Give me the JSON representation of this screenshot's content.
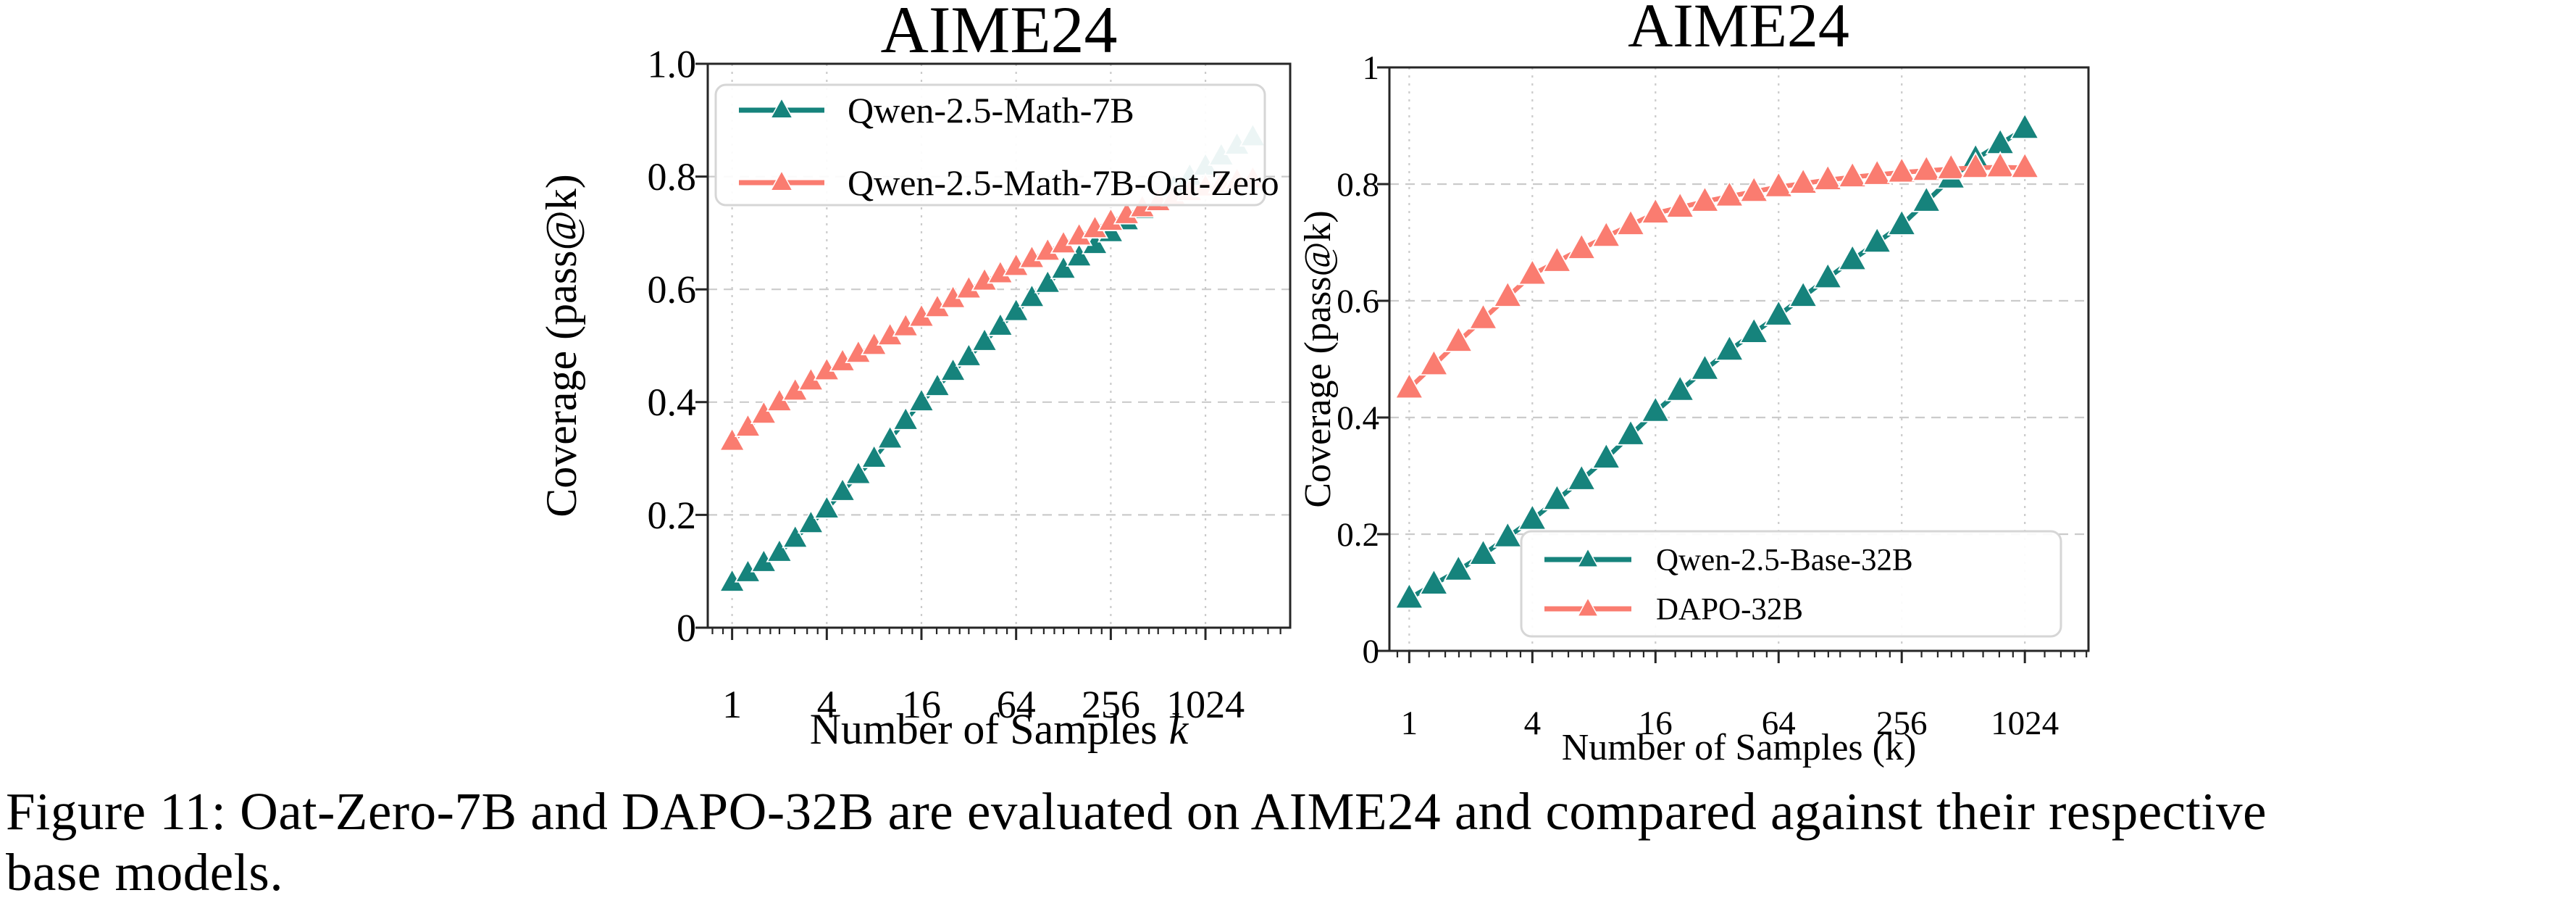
{
  "figure": {
    "caption_line1": "Figure 11: Oat-Zero-7B and DAPO-32B are evaluated on AIME24 and compared against their respective",
    "caption_line2": "base models."
  },
  "colors": {
    "teal": "#16837C",
    "coral": "#FA7C70",
    "grid": "#CBCBCB",
    "axis": "#262626",
    "legend_border": "#D6D6D6",
    "text": "#000000"
  },
  "chart_data": [
    {
      "type": "line",
      "title": "AIME24",
      "xlabel": "Number of Samples",
      "xlabel_suffix": "k",
      "xlabel_suffix_italic": true,
      "ylabel": "Coverage (pass@k)",
      "xscale": "log",
      "grid": true,
      "legend_position": "upper-left",
      "xlim": [
        0.7,
        3540
      ],
      "ylim": [
        0,
        1
      ],
      "xticks": [
        1,
        4,
        16,
        64,
        256,
        1024
      ],
      "xtick_labels": [
        "1",
        "4",
        "16",
        "64",
        "256",
        "1024"
      ],
      "yticks": [
        0,
        0.2,
        0.4,
        0.6,
        0.8,
        1.0
      ],
      "ytick_labels": [
        "0",
        "0.2",
        "0.4",
        "0.6",
        "0.8",
        "1.0"
      ],
      "series": [
        {
          "name": "Qwen-2.5-Math-7B",
          "color_key": "teal",
          "marker": "triangle-up",
          "k": [
            1,
            1.26,
            1.59,
            2,
            2.52,
            3.17,
            4,
            5.04,
            6.35,
            8,
            10.1,
            12.7,
            16,
            20.2,
            25.4,
            32,
            40.3,
            50.8,
            64,
            80.6,
            101.6,
            128,
            161,
            203,
            256,
            323,
            406,
            512,
            645,
            813,
            1024,
            1290,
            1625,
            2048
          ],
          "pass_at_k": [
            0.08,
            0.097,
            0.115,
            0.133,
            0.158,
            0.184,
            0.21,
            0.241,
            0.271,
            0.3,
            0.334,
            0.367,
            0.4,
            0.427,
            0.454,
            0.48,
            0.507,
            0.534,
            0.56,
            0.585,
            0.61,
            0.635,
            0.657,
            0.679,
            0.7,
            0.721,
            0.741,
            0.76,
            0.78,
            0.8,
            0.818,
            0.836,
            0.855,
            0.87
          ]
        },
        {
          "name": "Qwen-2.5-Math-7B-Oat-Zero",
          "color_key": "coral",
          "marker": "triangle-up",
          "k": [
            1,
            1.26,
            1.59,
            2,
            2.52,
            3.17,
            4,
            5.04,
            6.35,
            8,
            10.1,
            12.7,
            16,
            20.2,
            25.4,
            32,
            40.3,
            50.8,
            64,
            80.6,
            101.6,
            128,
            161,
            203,
            256,
            323,
            406,
            512,
            645,
            813,
            1024,
            1290,
            1625,
            2048
          ],
          "pass_at_k": [
            0.33,
            0.355,
            0.378,
            0.4,
            0.419,
            0.437,
            0.455,
            0.471,
            0.486,
            0.5,
            0.517,
            0.533,
            0.55,
            0.567,
            0.583,
            0.6,
            0.614,
            0.627,
            0.64,
            0.654,
            0.667,
            0.68,
            0.694,
            0.707,
            0.72,
            0.732,
            0.744,
            0.755,
            0.764,
            0.773,
            0.781,
            0.787,
            0.792,
            0.795
          ]
        }
      ]
    },
    {
      "type": "line",
      "title": "AIME24",
      "xlabel": "Number of Samples (k)",
      "xlabel_suffix": "",
      "xlabel_suffix_italic": false,
      "ylabel": "Coverage (pass@k)",
      "xscale": "log",
      "grid": true,
      "legend_position": "lower-right",
      "xlim": [
        0.8,
        2096
      ],
      "ylim": [
        0,
        1
      ],
      "xticks": [
        1,
        4,
        16,
        64,
        256,
        1024
      ],
      "xtick_labels": [
        "1",
        "4",
        "16",
        "64",
        "256",
        "1024"
      ],
      "yticks": [
        0,
        0.2,
        0.4,
        0.6,
        0.8,
        1.0
      ],
      "ytick_labels": [
        "0",
        "0.2",
        "0.4",
        "0.6",
        "0.8",
        "1"
      ],
      "series": [
        {
          "name": "Qwen-2.5-Base-32B",
          "color_key": "teal",
          "marker": "triangle-up",
          "k": [
            1,
            1.32,
            1.74,
            2.3,
            3.03,
            4,
            5.28,
            6.96,
            9.19,
            12.1,
            16,
            21.1,
            27.9,
            36.8,
            48.5,
            64,
            84.4,
            111.4,
            147,
            194,
            256,
            338,
            446,
            588,
            776,
            1024
          ],
          "pass_at_k": [
            0.09,
            0.114,
            0.138,
            0.165,
            0.195,
            0.225,
            0.259,
            0.293,
            0.33,
            0.37,
            0.41,
            0.446,
            0.482,
            0.515,
            0.545,
            0.575,
            0.607,
            0.639,
            0.67,
            0.7,
            0.73,
            0.77,
            0.81,
            0.843,
            0.869,
            0.895
          ]
        },
        {
          "name": "DAPO-32B",
          "color_key": "coral",
          "marker": "triangle-up",
          "k": [
            1,
            1.32,
            1.74,
            2.3,
            3.03,
            4,
            5.28,
            6.96,
            9.19,
            12.1,
            16,
            21.1,
            27.9,
            36.8,
            48.5,
            64,
            84.4,
            111.4,
            147,
            194,
            256,
            338,
            446,
            588,
            776,
            1024
          ],
          "pass_at_k": [
            0.45,
            0.49,
            0.53,
            0.569,
            0.607,
            0.645,
            0.667,
            0.689,
            0.71,
            0.73,
            0.75,
            0.76,
            0.77,
            0.779,
            0.787,
            0.795,
            0.801,
            0.807,
            0.812,
            0.816,
            0.82,
            0.823,
            0.826,
            0.828,
            0.829,
            0.828
          ]
        }
      ]
    }
  ]
}
